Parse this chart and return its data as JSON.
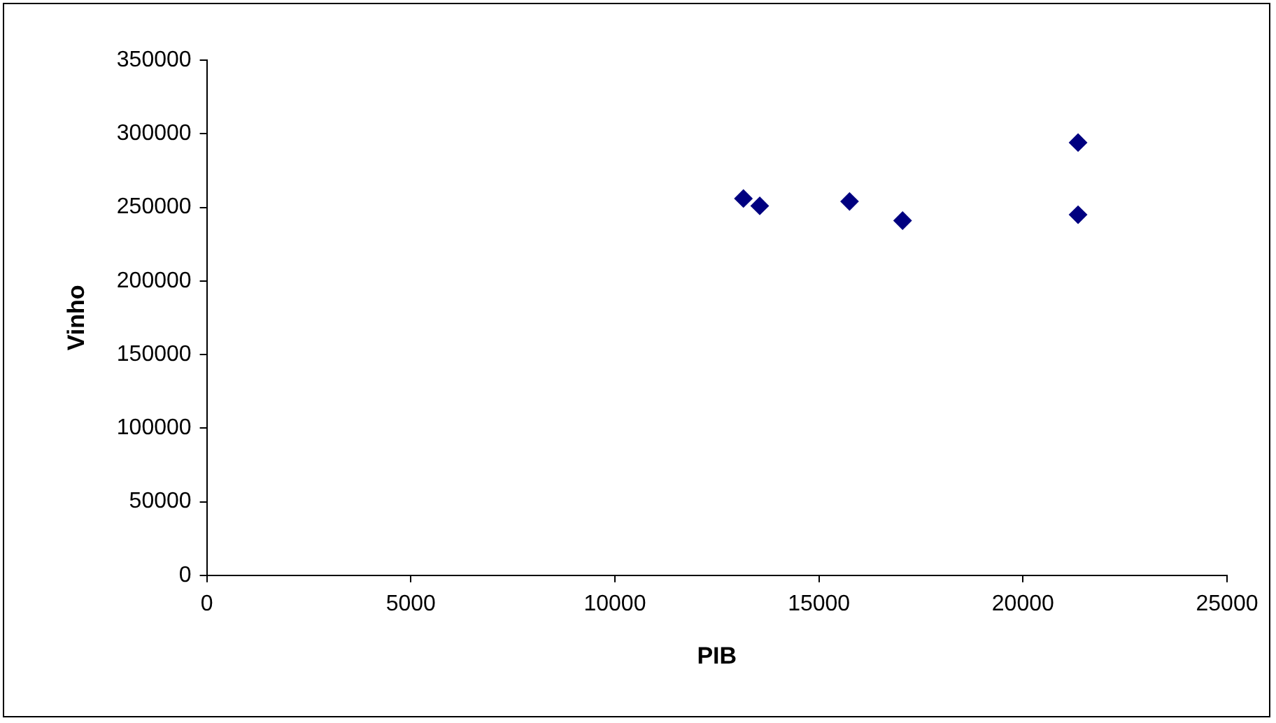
{
  "chart_data": {
    "type": "scatter",
    "xlabel": "PIB",
    "ylabel": "Vinho",
    "x": [
      13150,
      13550,
      15750,
      17050,
      21350,
      21350
    ],
    "values": [
      256000,
      251000,
      254000,
      241000,
      294000,
      245000
    ],
    "color": "#000080",
    "marker": "diamond",
    "xlim": [
      0,
      25000
    ],
    "xticks": [
      0,
      5000,
      10000,
      15000,
      20000,
      25000
    ],
    "ylim": [
      0,
      350000
    ],
    "yticks": [
      0,
      50000,
      100000,
      150000,
      200000,
      250000,
      300000,
      350000
    ],
    "grid": false,
    "legend": false
  }
}
